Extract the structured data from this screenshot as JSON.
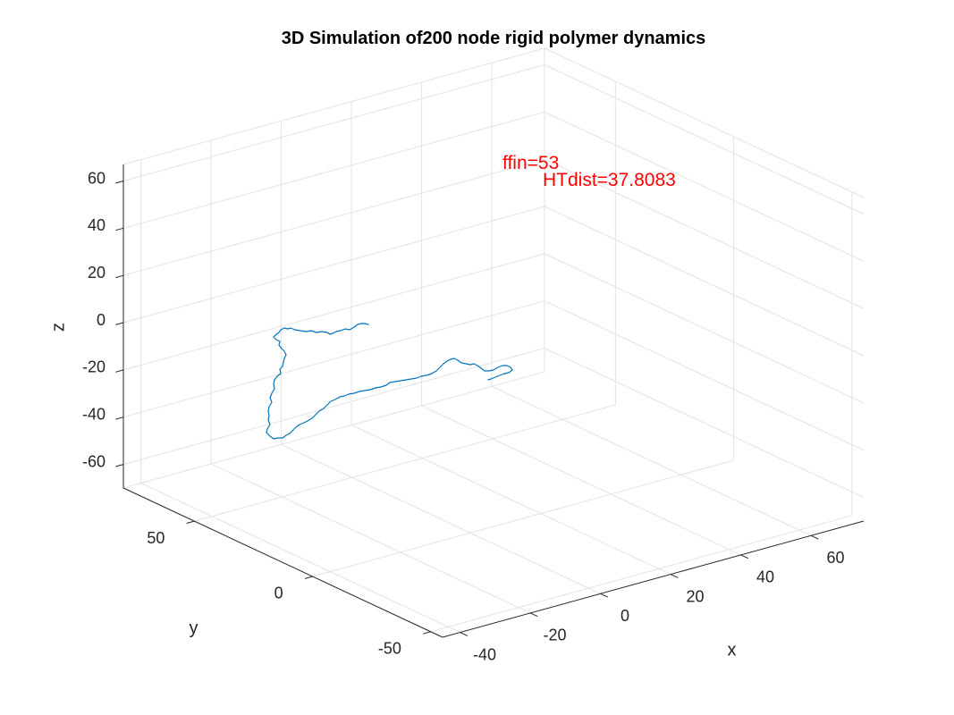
{
  "chart_data": {
    "type": "line",
    "title": "3D Simulation of200 node rigid polymer dynamics",
    "xlabel": "x",
    "ylabel": "y",
    "zlabel": "z",
    "xlim": [
      -45,
      75
    ],
    "ylim": [
      -55,
      80
    ],
    "zlim": [
      -70,
      67
    ],
    "x_ticks": [
      -40,
      -20,
      0,
      20,
      40,
      60
    ],
    "y_ticks": [
      -50,
      0,
      50
    ],
    "z_ticks": [
      -60,
      -40,
      -20,
      0,
      20,
      40,
      60
    ],
    "grid": true,
    "series_color": "#0072BD",
    "annotation_color": "#FF0000",
    "annotations": [
      {
        "text": "ffin=53"
      },
      {
        "text": "HTdist=37.8083"
      }
    ]
  }
}
